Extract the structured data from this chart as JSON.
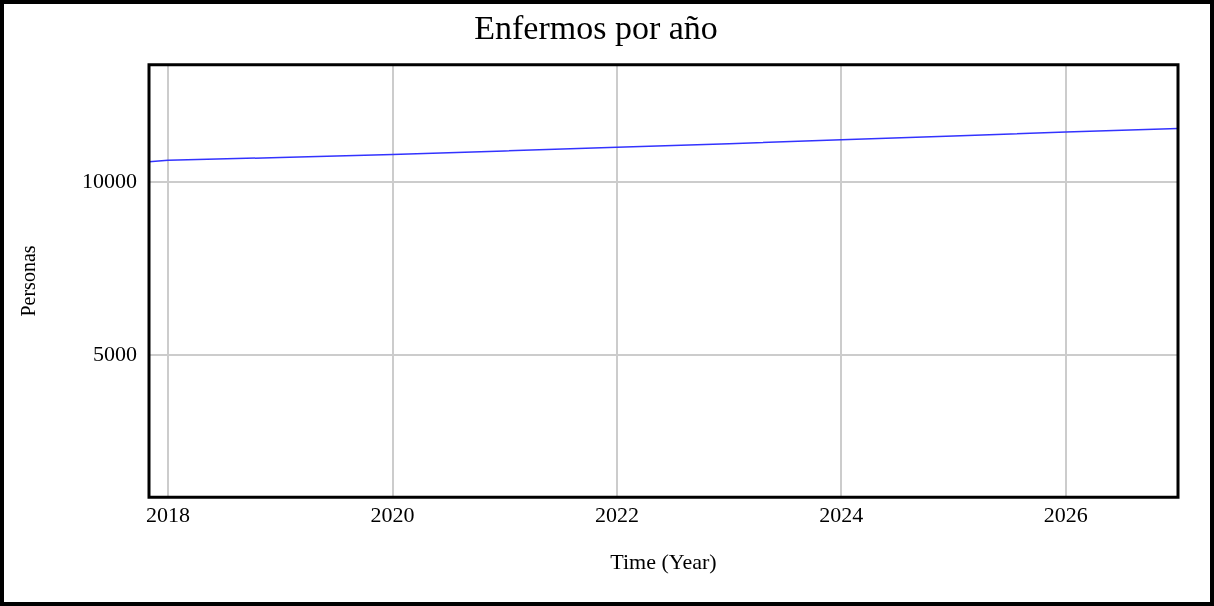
{
  "chart_data": {
    "type": "line",
    "title": "Enfermos por año",
    "xlabel": "Time (Year)",
    "ylabel": "Personas",
    "x": [
      2017.83,
      2018,
      2019,
      2020,
      2021,
      2022,
      2023,
      2024,
      2025,
      2026,
      2027
    ],
    "series": [
      {
        "color": "#3333ff",
        "values": [
          10600,
          10640,
          10720,
          10810,
          10910,
          11020,
          11120,
          11230,
          11340,
          11460,
          11560
        ]
      }
    ],
    "xlim": [
      2017.83,
      2027
    ],
    "xticks": [
      2018,
      2020,
      2022,
      2024,
      2026
    ],
    "ylim": [
      900,
      13400
    ],
    "yticks": [
      5000,
      10000
    ],
    "grid": true,
    "legend": false,
    "marker": "none",
    "line_style": "solid"
  }
}
